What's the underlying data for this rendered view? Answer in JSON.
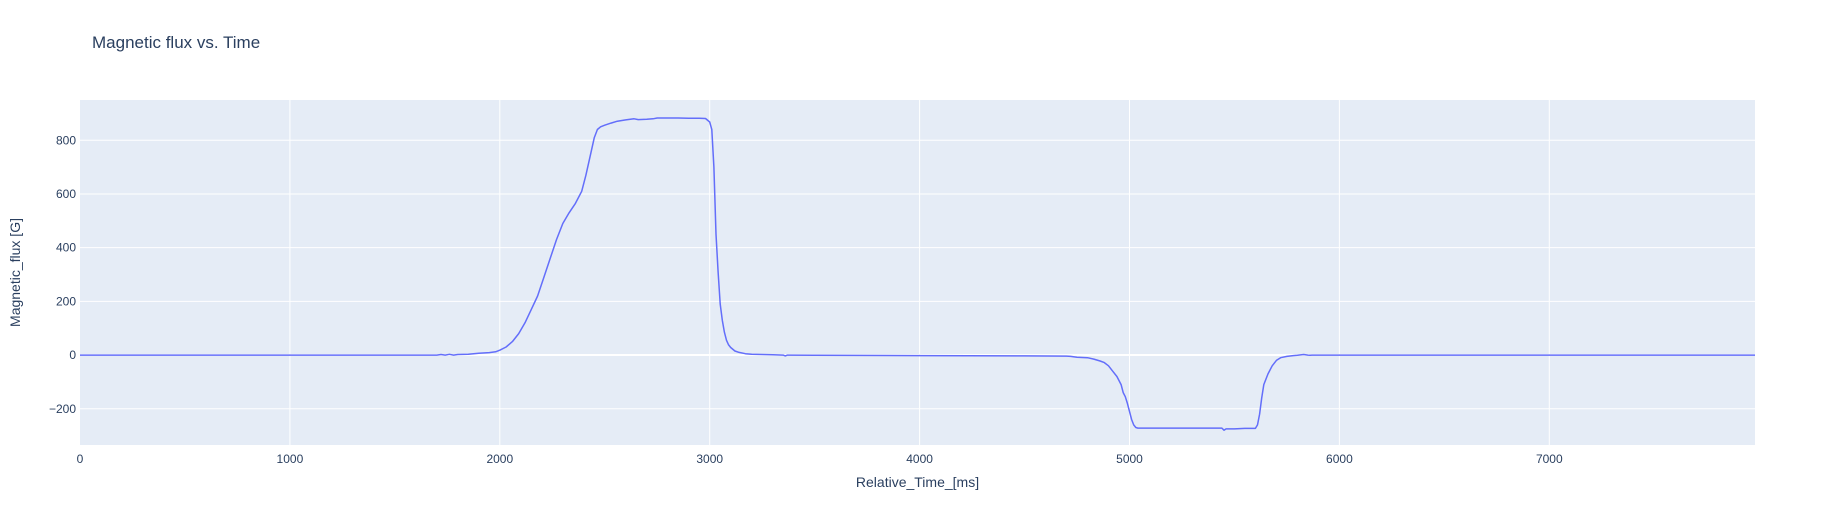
{
  "chart_data": {
    "type": "line",
    "title": "Magnetic flux vs. Time",
    "xlabel": "Relative_Time_[ms]",
    "ylabel": "Magnetic_flux [G]",
    "xlim": [
      0,
      7980
    ],
    "ylim": [
      -335,
      950
    ],
    "xticks": [
      0,
      1000,
      2000,
      3000,
      4000,
      5000,
      6000,
      7000
    ],
    "xtick_labels": [
      "0",
      "1000",
      "2000",
      "3000",
      "4000",
      "5000",
      "6000",
      "7000"
    ],
    "yticks": [
      -200,
      0,
      200,
      400,
      600,
      800
    ],
    "ytick_labels": [
      "−200",
      "0",
      "200",
      "400",
      "600",
      "800"
    ],
    "grid": true,
    "colors": {
      "line": "#636efa",
      "plot_bg": "#e5ecf6",
      "grid": "#ffffff",
      "text": "#2a3f5f"
    },
    "series": [
      {
        "x": [
          0,
          1700,
          1720,
          1740,
          1760,
          1780,
          1800,
          1850,
          1900,
          1950,
          1980,
          2000,
          2030,
          2060,
          2090,
          2120,
          2150,
          2180,
          2210,
          2240,
          2270,
          2300,
          2330,
          2360,
          2390,
          2410,
          2430,
          2450,
          2465,
          2480,
          2500,
          2530,
          2560,
          2600,
          2640,
          2660,
          2700,
          2730,
          2750,
          2800,
          2850,
          2900,
          2950,
          2980,
          3000,
          3010,
          3020,
          3030,
          3040,
          3050,
          3060,
          3070,
          3080,
          3090,
          3100,
          3120,
          3140,
          3170,
          3200,
          3250,
          3300,
          3350,
          3360,
          3370,
          3500,
          4000,
          4500,
          4700,
          4720,
          4750,
          4800,
          4830,
          4860,
          4880,
          4900,
          4920,
          4940,
          4960,
          4970,
          4980,
          4990,
          5000,
          5010,
          5020,
          5030,
          5040,
          5100,
          5200,
          5300,
          5400,
          5440,
          5450,
          5460,
          5500,
          5550,
          5600,
          5610,
          5620,
          5630,
          5640,
          5660,
          5680,
          5700,
          5720,
          5750,
          5780,
          5800,
          5830,
          5850,
          5860,
          5870,
          5900,
          6000,
          7000,
          7980
        ],
        "y": [
          0,
          0,
          2,
          0,
          3,
          0,
          2,
          3,
          7,
          9,
          12,
          18,
          30,
          50,
          80,
          120,
          170,
          220,
          290,
          360,
          430,
          490,
          530,
          565,
          610,
          670,
          740,
          810,
          840,
          850,
          856,
          864,
          871,
          876,
          880,
          877,
          878,
          880,
          883,
          883,
          883,
          882,
          882,
          881,
          868,
          840,
          700,
          450,
          310,
          190,
          130,
          85,
          55,
          38,
          28,
          15,
          10,
          5,
          3,
          2,
          1,
          0,
          -3,
          0,
          -1,
          -2,
          -3,
          -4,
          -5,
          -8,
          -10,
          -15,
          -22,
          -28,
          -40,
          -60,
          -80,
          -110,
          -140,
          -155,
          -180,
          -210,
          -240,
          -260,
          -270,
          -272,
          -272,
          -272,
          -272,
          -272,
          -272,
          -280,
          -275,
          -275,
          -273,
          -273,
          -260,
          -220,
          -160,
          -110,
          -70,
          -40,
          -20,
          -10,
          -5,
          -2,
          -1,
          2,
          0,
          -1,
          0,
          0,
          0,
          0,
          0
        ]
      }
    ]
  }
}
